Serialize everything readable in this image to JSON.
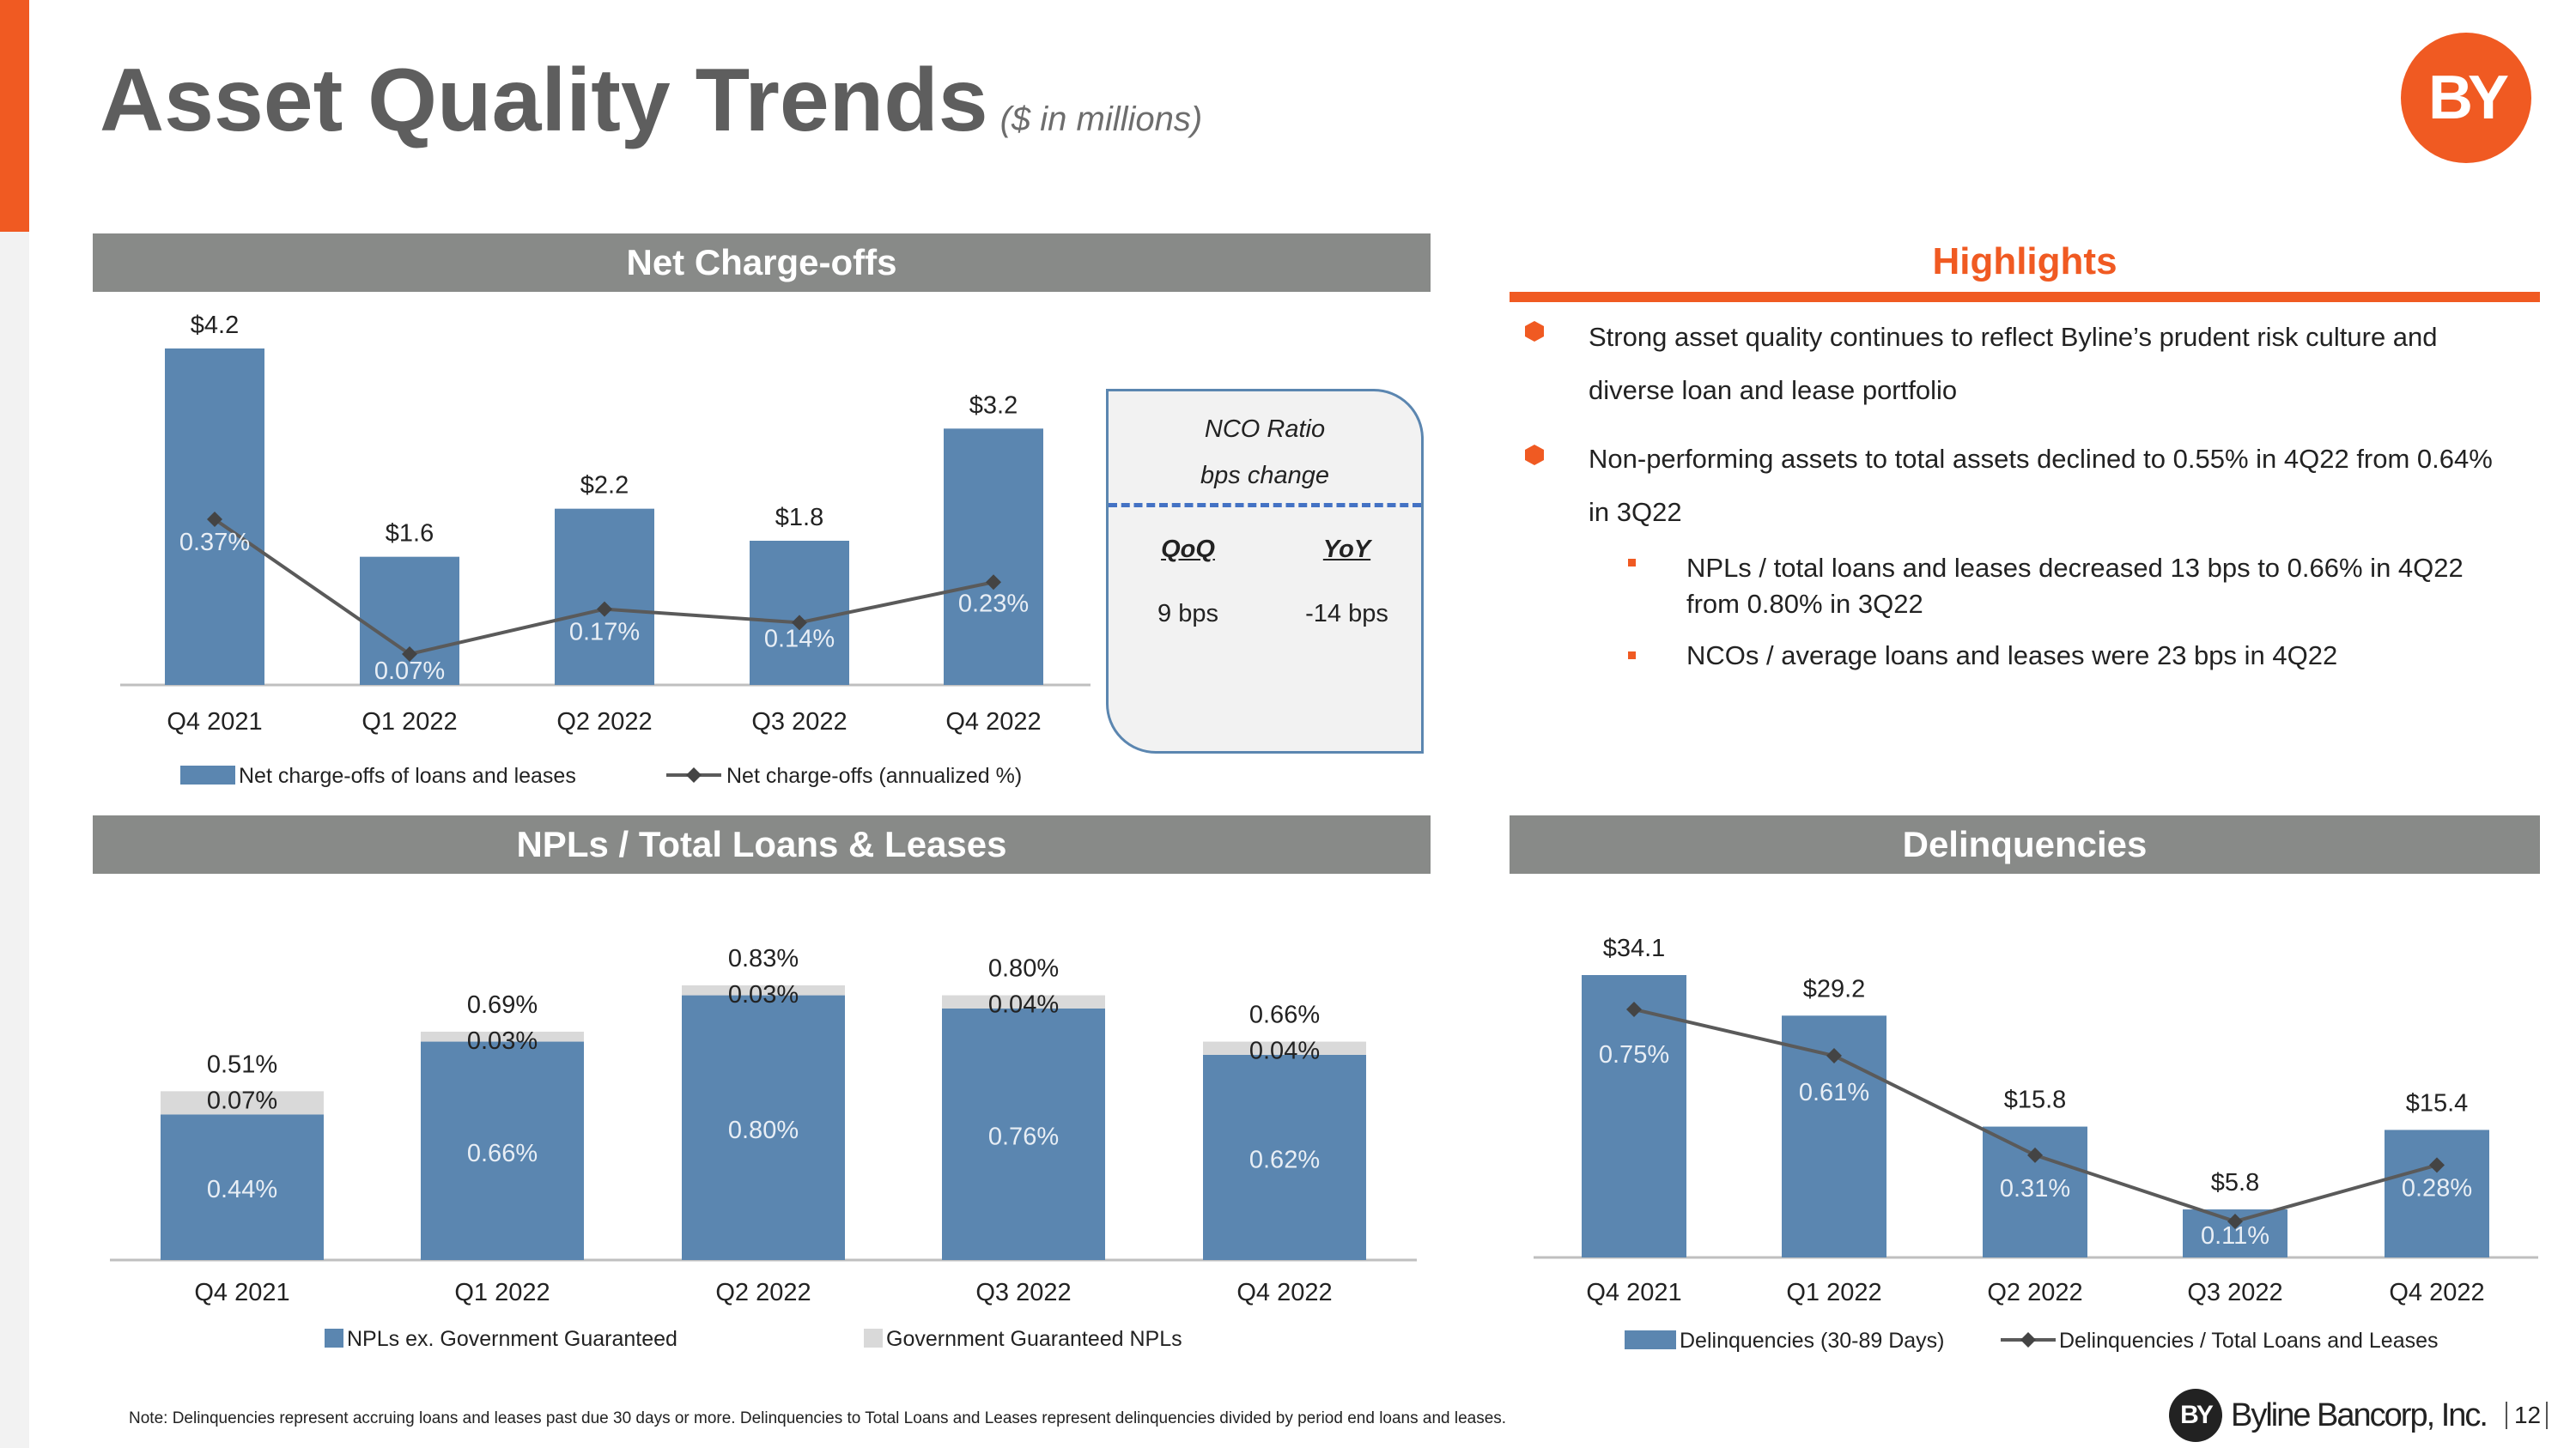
{
  "header": {
    "title": "Asset Quality Trends",
    "subtitle": "($ in millions)",
    "logo_text": "BY",
    "accent_color": "#f05a22",
    "header_bar_color": "#888a88",
    "bar_color": "#5b86b0"
  },
  "panels": {
    "nco_title": "Net Charge-offs",
    "npl_title": "NPLs / Total Loans & Leases",
    "delinq_title": "Delinquencies"
  },
  "nco_box": {
    "title_line1": "NCO Ratio",
    "title_line2": "bps change",
    "col1_header": "QoQ",
    "col1_value": "9 bps",
    "col2_header": "YoY",
    "col2_value": "-14 bps"
  },
  "highlights": {
    "title": "Highlights",
    "bullet1_line1": "Strong asset quality continues to reflect Byline’s prudent risk culture and",
    "bullet1_line2": "diverse loan and lease portfolio",
    "bullet2_line1": "Non-performing assets to total assets declined to 0.55% in 4Q22 from 0.64%",
    "bullet2_line2": "in 3Q22",
    "sub1_line1": "NPLs / total loans and leases decreased 13 bps to 0.66% in 4Q22",
    "sub1_line2": "from 0.80% in 3Q22",
    "sub2": "NCOs / average loans and leases were 23 bps in 4Q22"
  },
  "chart_data": [
    {
      "type": "bar",
      "title": "Net Charge-offs",
      "categories": [
        "Q4 2021",
        "Q1 2022",
        "Q2 2022",
        "Q3 2022",
        "Q4 2022"
      ],
      "series": [
        {
          "name": "Net charge-offs of loans and leases",
          "kind": "bar",
          "values": [
            4.2,
            1.6,
            2.2,
            1.8,
            3.2
          ],
          "labels": [
            "$4.2",
            "$1.6",
            "$2.2",
            "$1.8",
            "$3.2"
          ]
        },
        {
          "name": "Net charge-offs (annualized %)",
          "kind": "line",
          "values": [
            0.37,
            0.07,
            0.17,
            0.14,
            0.23
          ],
          "labels": [
            "0.37%",
            "0.07%",
            "0.17%",
            "0.14%",
            "0.23%"
          ]
        }
      ],
      "ylim": [
        0,
        4.2
      ]
    },
    {
      "type": "bar",
      "stacked": true,
      "title": "NPLs / Total Loans & Leases",
      "categories": [
        "Q4 2021",
        "Q1 2022",
        "Q2 2022",
        "Q3 2022",
        "Q4 2022"
      ],
      "series": [
        {
          "name": "NPLs ex. Government Guaranteed",
          "values": [
            0.44,
            0.66,
            0.8,
            0.76,
            0.62
          ],
          "labels": [
            "0.44%",
            "0.66%",
            "0.80%",
            "0.76%",
            "0.62%"
          ]
        },
        {
          "name": "Government Guaranteed NPLs",
          "values": [
            0.07,
            0.03,
            0.03,
            0.04,
            0.04
          ],
          "labels": [
            "0.07%",
            "0.03%",
            "0.03%",
            "0.04%",
            "0.04%"
          ]
        }
      ],
      "totals": [
        "0.51%",
        "0.69%",
        "0.83%",
        "0.80%",
        "0.66%"
      ],
      "ylim": [
        0,
        0.83
      ]
    },
    {
      "type": "bar",
      "title": "Delinquencies",
      "categories": [
        "Q4 2021",
        "Q1 2022",
        "Q2 2022",
        "Q3 2022",
        "Q4 2022"
      ],
      "series": [
        {
          "name": "Delinquencies (30-89 Days)",
          "kind": "bar",
          "values": [
            34.1,
            29.2,
            15.8,
            5.8,
            15.4
          ],
          "labels": [
            "$34.1",
            "$29.2",
            "$15.8",
            "$5.8",
            "$15.4"
          ]
        },
        {
          "name": "Delinquencies / Total Loans and Leases",
          "kind": "line",
          "values": [
            0.75,
            0.61,
            0.31,
            0.11,
            0.28
          ],
          "labels": [
            "0.75%",
            "0.61%",
            "0.31%",
            "0.11%",
            "0.28%"
          ]
        }
      ],
      "ylim": [
        0,
        34.1
      ]
    }
  ],
  "footer": {
    "note": "Note: Delinquencies represent accruing loans and leases past due 30 days or more. Delinquencies to Total Loans and Leases represent delinquencies divided by period end loans and leases.",
    "logo_mark": "BY",
    "company": "Byline Bancorp, Inc.",
    "page": "12"
  }
}
